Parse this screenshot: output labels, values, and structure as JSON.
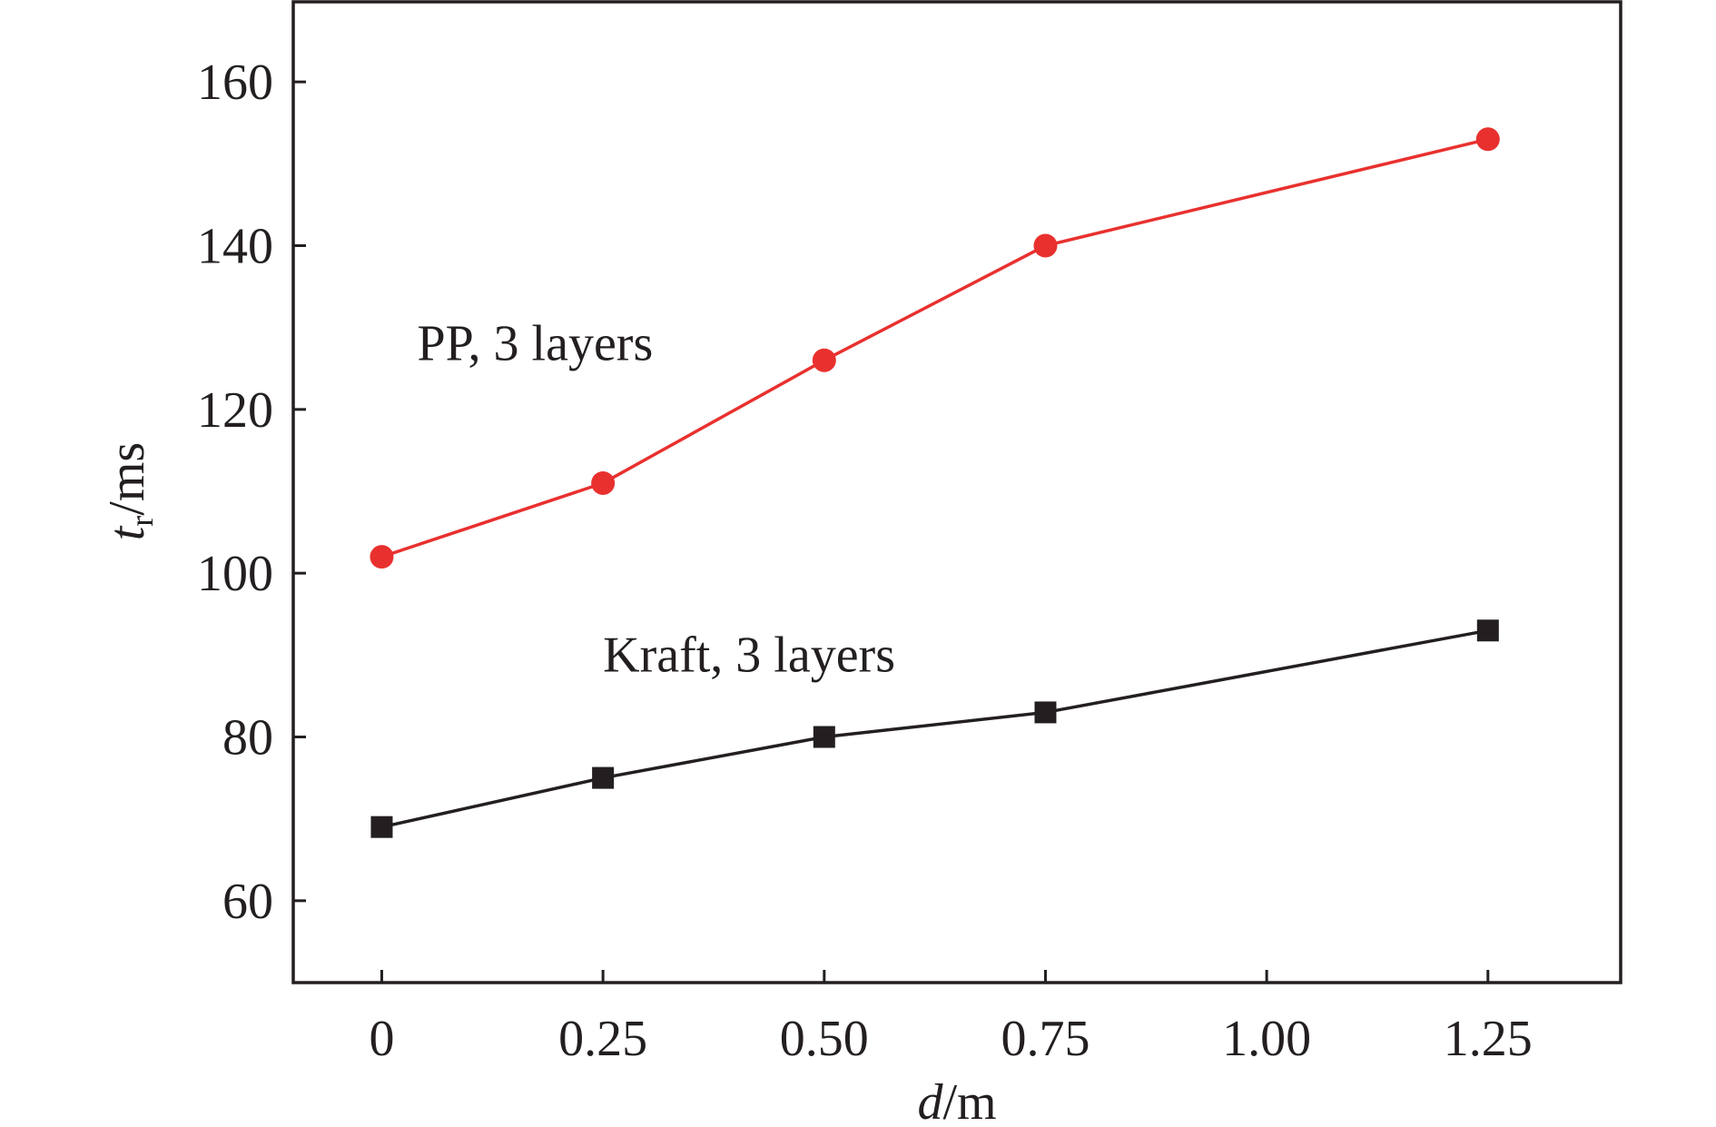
{
  "chart_data": {
    "type": "line",
    "title": "",
    "xlabel": {
      "main": "d",
      "unit": "/m"
    },
    "ylabel": {
      "main": "t",
      "sub": "r",
      "unit": "/ms"
    },
    "xlim": [
      -0.2,
      2.8
    ],
    "ylim": [
      50,
      170
    ],
    "x_ticks": [
      {
        "pos": 0,
        "label": "0"
      },
      {
        "pos": 0.5,
        "label": "0.25"
      },
      {
        "pos": 1,
        "label": "0.50"
      },
      {
        "pos": 1.5,
        "label": "0.75"
      },
      {
        "pos": 2,
        "label": "1.00"
      },
      {
        "pos": 2.5,
        "label": "1.25"
      }
    ],
    "y_ticks": [
      60,
      80,
      100,
      120,
      140,
      160
    ],
    "grid": false,
    "series": [
      {
        "label": "PP, 3 layers",
        "color": "#e8312f",
        "marker": "circle",
        "label_anchor": [
          0.08,
          126
        ],
        "points": [
          {
            "d": 0,
            "x": 0,
            "y": 102
          },
          {
            "d": 0.25,
            "x": 0.5,
            "y": 111
          },
          {
            "d": 0.5,
            "x": 1,
            "y": 126
          },
          {
            "d": 0.75,
            "x": 1.5,
            "y": 140
          },
          {
            "d": 1.25,
            "x": 2.5,
            "y": 153
          }
        ]
      },
      {
        "label": "Kraft, 3 layers",
        "color": "#231f20",
        "marker": "square",
        "label_anchor": [
          0.5,
          88
        ],
        "points": [
          {
            "d": 0,
            "x": 0,
            "y": 69
          },
          {
            "d": 0.25,
            "x": 0.5,
            "y": 75
          },
          {
            "d": 0.5,
            "x": 1,
            "y": 80
          },
          {
            "d": 0.75,
            "x": 1.5,
            "y": 83
          },
          {
            "d": 1.25,
            "x": 2.5,
            "y": 93
          }
        ]
      }
    ]
  }
}
